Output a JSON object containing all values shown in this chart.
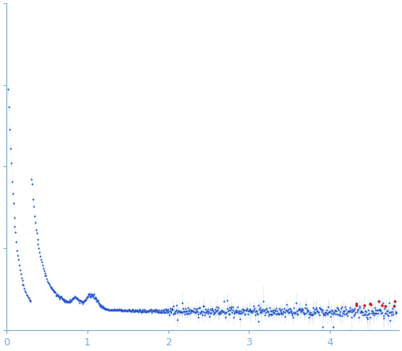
{
  "background_color": "#ffffff",
  "axes_color": "#7bafd4",
  "dot_color": "#2255cc",
  "error_color": "#b0cce8",
  "outlier_color": "#cc2222",
  "x_min": 0.0,
  "x_max": 4.85,
  "y_min": -0.05,
  "y_max": 1.05,
  "x_ticks": [
    0,
    1,
    2,
    3,
    4
  ],
  "tick_label_color": "#7bafd4",
  "tick_fontsize": 9,
  "spine_linewidth": 0.8,
  "dot_size": 2.5,
  "seed": 12345
}
